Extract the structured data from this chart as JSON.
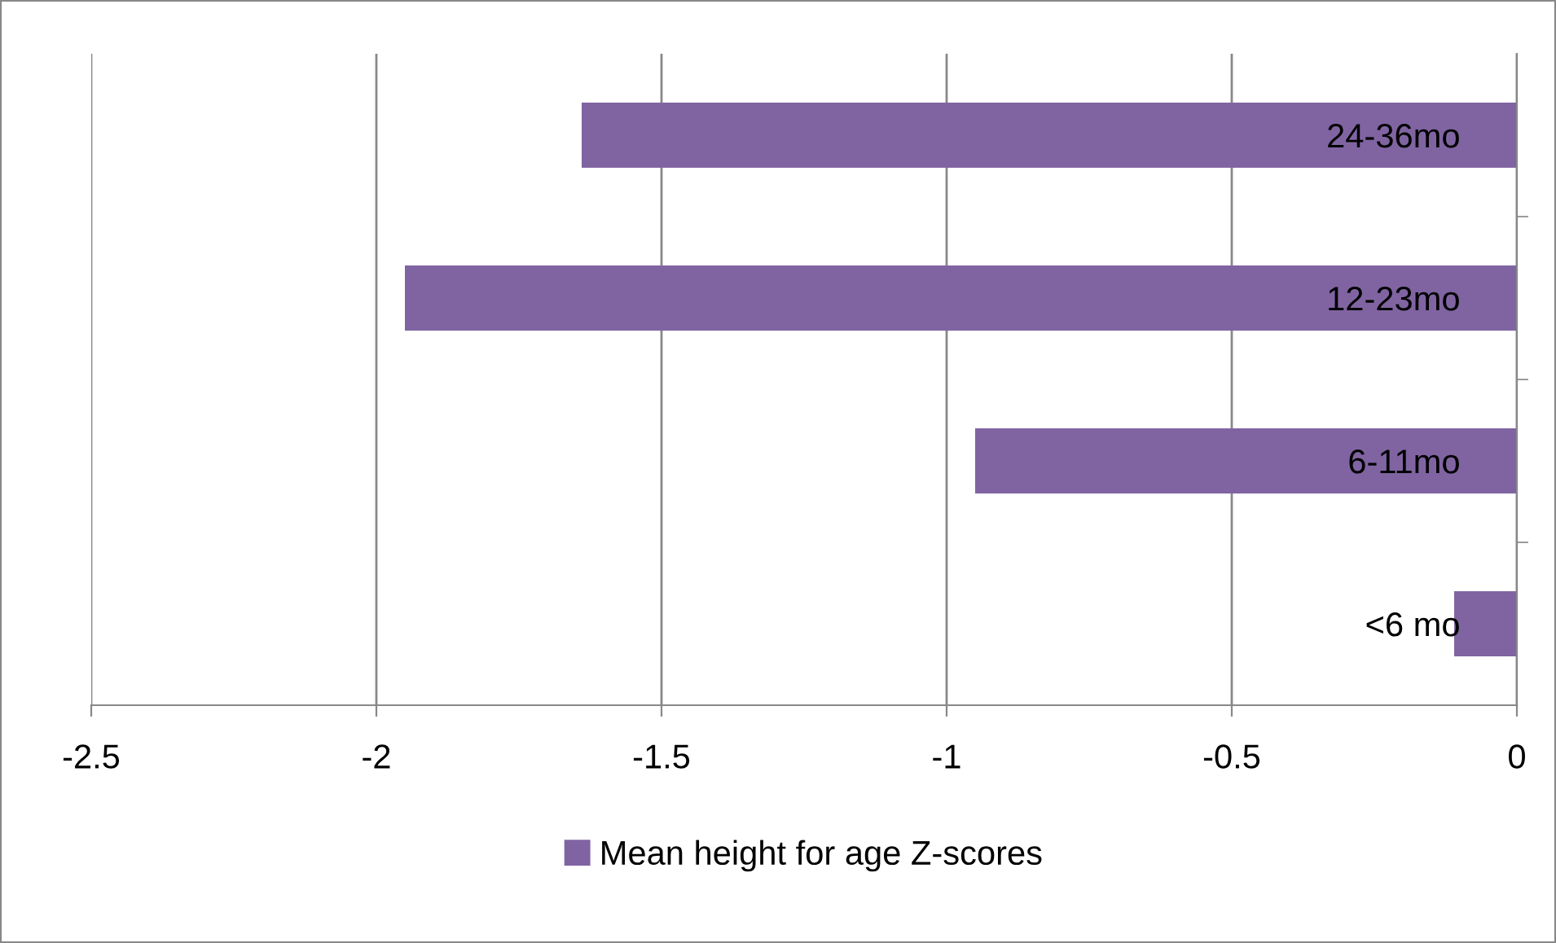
{
  "chart_data": {
    "type": "bar",
    "orientation": "horizontal",
    "categories": [
      "24-36mo",
      "12-23mo",
      "6-11mo",
      "<6 mo"
    ],
    "series": [
      {
        "name": "Mean height for age Z-scores",
        "color": "#8064a2",
        "values": [
          -1.64,
          -1.95,
          -0.95,
          -0.11
        ]
      }
    ],
    "xlim": [
      -2.5,
      0
    ],
    "xticks": [
      -2.5,
      -2,
      -1.5,
      -1,
      -0.5,
      0
    ],
    "grid": "x",
    "legend": "bottom"
  }
}
